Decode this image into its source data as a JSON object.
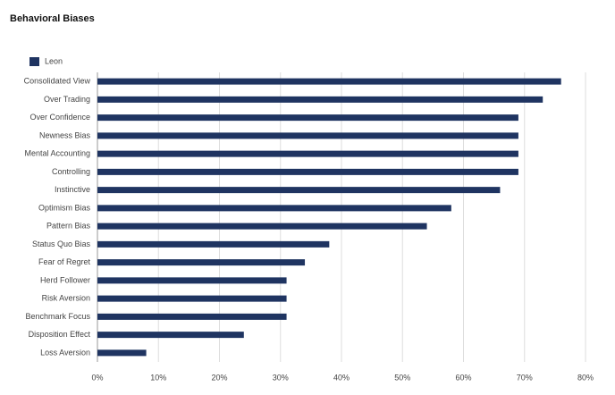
{
  "chart_data": {
    "type": "bar",
    "orientation": "horizontal",
    "title": "Behavioral Biases",
    "categories": [
      "Consolidated View",
      "Over Trading",
      "Over Confidence",
      "Newness Bias",
      "Mental Accounting",
      "Controlling",
      "Instinctive",
      "Optimism Bias",
      "Pattern Bias",
      "Status Quo Bias",
      "Fear of Regret",
      "Herd Follower",
      "Risk Aversion",
      "Benchmark Focus",
      "Disposition Effect",
      "Loss Aversion"
    ],
    "series": [
      {
        "name": "Leon",
        "color": "#1f3461",
        "values": [
          76,
          73,
          69,
          69,
          69,
          69,
          66,
          58,
          54,
          38,
          34,
          31,
          31,
          31,
          24,
          8
        ]
      }
    ],
    "xlim": [
      0,
      80
    ],
    "xticks": [
      {
        "value": 0,
        "label": "0%"
      },
      {
        "value": 10,
        "label": "10%"
      },
      {
        "value": 20,
        "label": "20%"
      },
      {
        "value": 30,
        "label": "30%"
      },
      {
        "value": 40,
        "label": "40%"
      },
      {
        "value": 50,
        "label": "50%"
      },
      {
        "value": 60,
        "label": "60%"
      },
      {
        "value": 70,
        "label": "70%"
      },
      {
        "value": 80,
        "label": "80%"
      }
    ],
    "grid": true,
    "legend": "top-left"
  }
}
